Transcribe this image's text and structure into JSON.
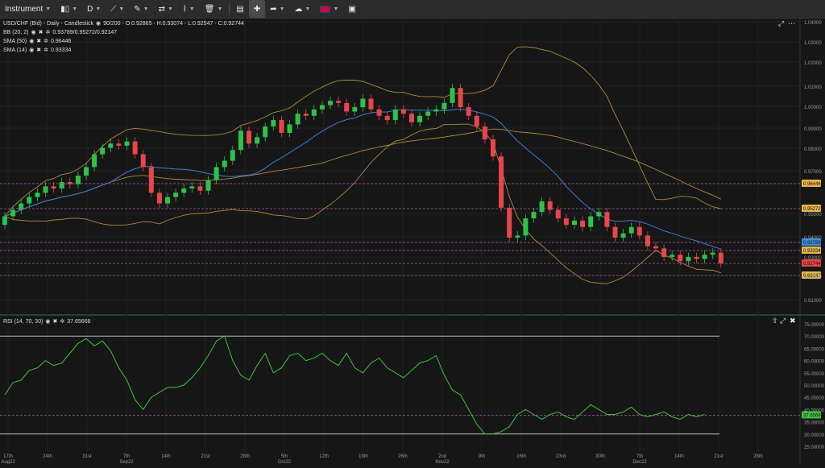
{
  "toolbar": {
    "instrument_label": "Instrument",
    "timeframe_label": "D"
  },
  "main_legend": {
    "title": "USD/CHF (Bid) - Daily - Candlestick",
    "ohlc": "90/200 - O:0.92865 - H:0.93074 - L:0.92547 - C:0.92744",
    "bb_label": "BB (20, 2)",
    "bb_value": "0.93789/0.95272/0.92147",
    "sma50_label": "SMA (50)",
    "sma50_value": "0.96446",
    "sma14_label": "SMA (14)",
    "sma14_value": "0.93334"
  },
  "rsi_legend": {
    "label": "RSI (14, 70, 30)",
    "value": "37.65668"
  },
  "price_axis": [
    "1.04000",
    "1.03000",
    "1.02000",
    "1.01000",
    "1.00000",
    "0.99000",
    "0.98000",
    "0.97000",
    "0.95000",
    "0.94000",
    "0.93000",
    "0.92000",
    "0.91000"
  ],
  "price_badges": [
    {
      "text": "0.96446",
      "color": "#e8b54a"
    },
    {
      "text": "0.95272",
      "color": "#e8b54a"
    },
    {
      "text": "0.93789",
      "color": "#3a8ee6"
    },
    {
      "text": "0.93334",
      "color": "#e8b54a"
    },
    {
      "text": "0.92744",
      "color": "#e04848"
    },
    {
      "text": "0.92147",
      "color": "#e8b54a"
    }
  ],
  "rsi_axis": [
    "75.00000",
    "70.00000",
    "65.00000",
    "60.00000",
    "55.00000",
    "50.00000",
    "45.00000",
    "40.00000",
    "35.00000",
    "30.00000",
    "25.00000"
  ],
  "rsi_badge": {
    "text": "37.65668",
    "color": "#3fc23f"
  },
  "date_axis": [
    {
      "label": "17th",
      "sub": "Aug22"
    },
    {
      "label": "24th",
      "sub": ""
    },
    {
      "label": "31st",
      "sub": ""
    },
    {
      "label": "7th",
      "sub": "Sep22"
    },
    {
      "label": "14th",
      "sub": ""
    },
    {
      "label": "21st",
      "sub": ""
    },
    {
      "label": "28th",
      "sub": ""
    },
    {
      "label": "5th",
      "sub": "Oct22"
    },
    {
      "label": "12th",
      "sub": ""
    },
    {
      "label": "19th",
      "sub": ""
    },
    {
      "label": "26th",
      "sub": ""
    },
    {
      "label": "2nd",
      "sub": "Nov22"
    },
    {
      "label": "9th",
      "sub": ""
    },
    {
      "label": "16th",
      "sub": ""
    },
    {
      "label": "23rd",
      "sub": ""
    },
    {
      "label": "30th",
      "sub": ""
    },
    {
      "label": "7th",
      "sub": "Dec22"
    },
    {
      "label": "14th",
      "sub": ""
    },
    {
      "label": "21st",
      "sub": ""
    },
    {
      "label": "28th",
      "sub": ""
    }
  ],
  "colors": {
    "up": "#2ec24b",
    "down": "#e8464a",
    "bb": "#b08a3a",
    "sma50": "#b08a3a",
    "sma14": "#3a7fd5",
    "rsi": "#3fc23f"
  },
  "icons": [
    "grid-icon",
    "pencil-icon",
    "ruler-icon",
    "trash-icon",
    "layout-icon",
    "fullscreen-icon",
    "share-icon",
    "cloud-icon",
    "flag-icon",
    "settings-icon"
  ]
}
